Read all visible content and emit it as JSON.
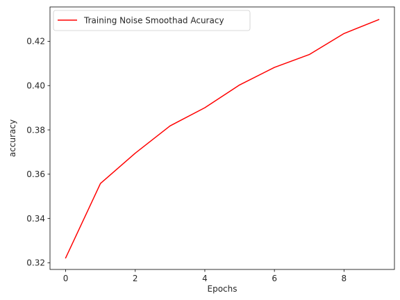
{
  "chart_data": {
    "type": "line",
    "title": "",
    "xlabel": "Epochs",
    "ylabel": "accuracy",
    "xlim": [
      -0.45,
      9.45
    ],
    "ylim": [
      0.317,
      0.4355
    ],
    "xticks": [
      0,
      2,
      4,
      6,
      8
    ],
    "xtick_labels": [
      "0",
      "2",
      "4",
      "6",
      "8"
    ],
    "yticks": [
      0.32,
      0.34,
      0.36,
      0.38,
      0.4,
      0.42
    ],
    "ytick_labels": [
      "0.32",
      "0.34",
      "0.36",
      "0.38",
      "0.40",
      "0.42"
    ],
    "grid": false,
    "legend_position": "upper-left",
    "series": [
      {
        "name": "Training Noise Smoothad Acuracy",
        "color": "#ff0000",
        "x": [
          0,
          1,
          2,
          3,
          4,
          5,
          6,
          7,
          8,
          9
        ],
        "y": [
          0.3222,
          0.3558,
          0.3695,
          0.3818,
          0.39,
          0.4003,
          0.4082,
          0.414,
          0.4235,
          0.4298
        ]
      }
    ]
  }
}
